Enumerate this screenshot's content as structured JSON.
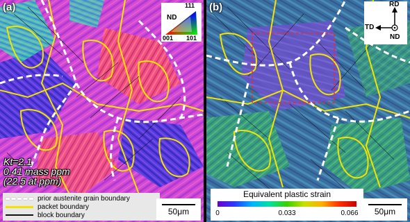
{
  "panels": {
    "a": {
      "label": "(a)",
      "ipf_key": {
        "top": "111",
        "left": "001",
        "right": "101",
        "axis": "ND"
      },
      "condition_lines": [
        "Kt=2.1",
        "0.41 mass ppm",
        "(22.5 at ppm)"
      ],
      "legend": [
        {
          "label": "prior austenite grain boundary",
          "style": "dashed-white"
        },
        {
          "label": "packet boundary",
          "style": "yellow"
        },
        {
          "label": "block boundary",
          "style": "black"
        }
      ],
      "scale_bar": "50μm"
    },
    "b": {
      "label": "(b)",
      "axes": {
        "up": "RD",
        "left": "TD",
        "center": "ND"
      },
      "strain_legend": {
        "title": "Equivalent plastic strain",
        "ticks": [
          "0",
          "0.033",
          "0.066"
        ]
      },
      "scale_bar": "50μm"
    }
  },
  "colors": {
    "ipf_background": "#d24ad8",
    "strain_background": "#3b6fa0",
    "packet_boundary": "#f2e400",
    "prior_austenite_boundary": "#ffffff",
    "highlight_box": "#e03030"
  }
}
